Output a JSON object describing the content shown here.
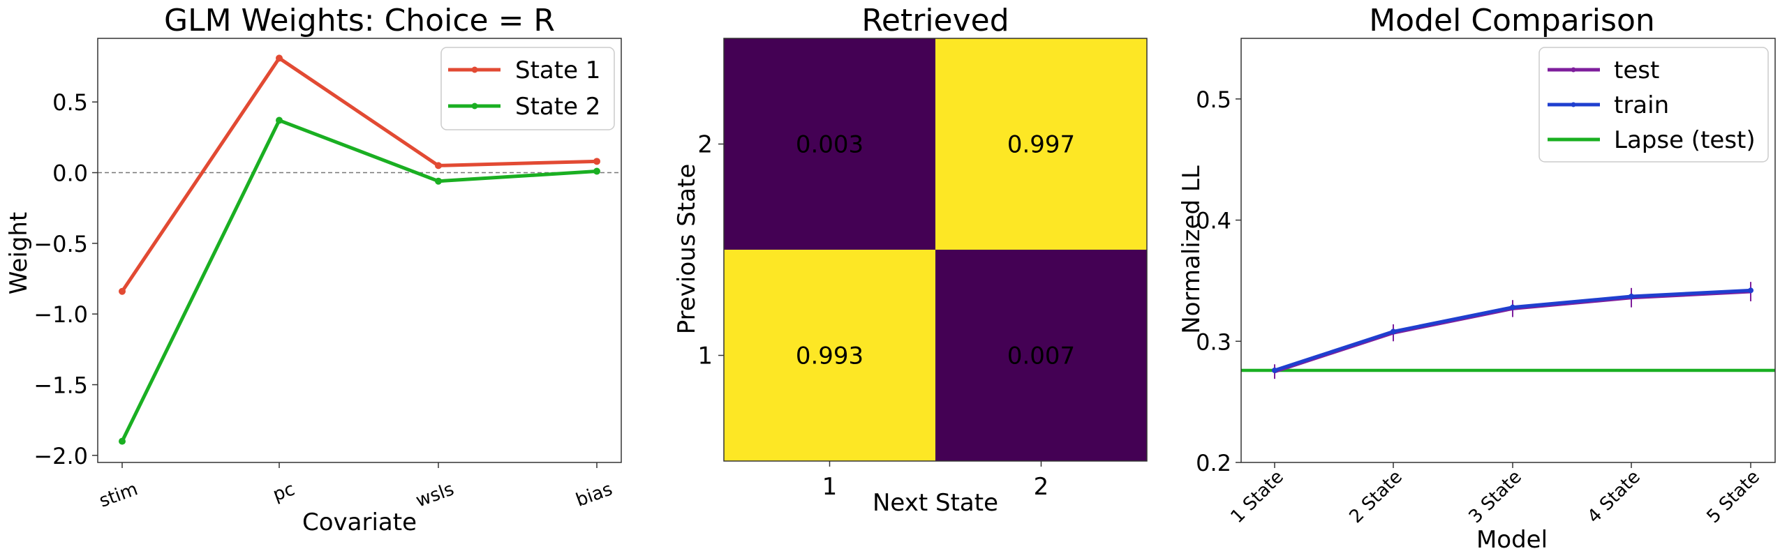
{
  "chart_data": [
    {
      "type": "line",
      "title": "GLM Weights: Choice = R",
      "xlabel": "Covariate",
      "ylabel": "Weight",
      "categories": [
        "stim",
        "pc",
        "wsls",
        "bias"
      ],
      "ylim": [
        -2.05,
        0.95
      ],
      "yticks": [
        0.5,
        0.0,
        -0.5,
        -1.0,
        -1.5,
        -2.0
      ],
      "ytick_labels": [
        "0.5",
        "0.0",
        "−0.5",
        "−1.0",
        "−1.5",
        "−2.0"
      ],
      "reference_line": 0,
      "legend": "top-right",
      "series": [
        {
          "name": "State 1",
          "color": "#e24a33",
          "values": [
            -0.84,
            0.81,
            0.05,
            0.08
          ]
        },
        {
          "name": "State 2",
          "color": "#1aaf22",
          "values": [
            -1.9,
            0.37,
            -0.06,
            0.01
          ]
        }
      ]
    },
    {
      "type": "heatmap",
      "title": "Retrieved",
      "xlabel": "Next State",
      "ylabel": "Previous State",
      "x_ticks": [
        "1",
        "2"
      ],
      "y_ticks": [
        "2",
        "1"
      ],
      "low_color": "#440154",
      "high_color": "#fde725",
      "rows": [
        {
          "state": "2",
          "values": [
            0.003,
            0.997
          ],
          "labels": [
            "0.003",
            "0.997"
          ]
        },
        {
          "state": "1",
          "values": [
            0.993,
            0.007
          ],
          "labels": [
            "0.993",
            "0.007"
          ]
        }
      ]
    },
    {
      "type": "line",
      "title": "Model Comparison",
      "xlabel": "Model",
      "ylabel": "Normalized LL",
      "categories": [
        "1 State",
        "2 State",
        "3 State",
        "4 State",
        "5 State"
      ],
      "ylim": [
        0.2,
        0.55
      ],
      "yticks": [
        0.2,
        0.3,
        0.4,
        0.5
      ],
      "ytick_labels": [
        "0.2",
        "0.3",
        "0.4",
        "0.5"
      ],
      "legend": "top-right",
      "series": [
        {
          "name": "test",
          "color": "#7e1e9c",
          "values": [
            0.275,
            0.307,
            0.327,
            0.336,
            0.341
          ],
          "errors": [
            0.006,
            0.007,
            0.007,
            0.008,
            0.008
          ]
        },
        {
          "name": "train",
          "color": "#1f3fcf",
          "values": [
            0.276,
            0.308,
            0.328,
            0.337,
            0.342
          ]
        }
      ],
      "hline": {
        "name": "Lapse (test)",
        "color": "#1aaf22",
        "value": 0.276
      }
    }
  ]
}
